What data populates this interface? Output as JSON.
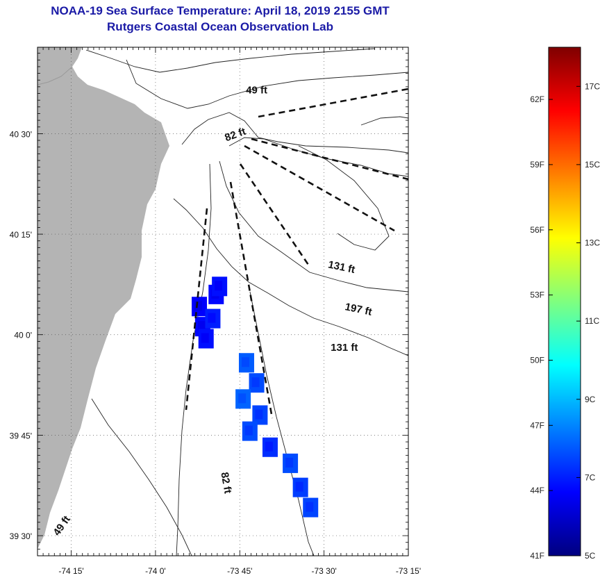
{
  "title": {
    "line1": "NOAA-19 Sea Surface Temperature:  April 18, 2019 2155 GMT",
    "line2": "Rutgers Coastal Ocean Observation Lab"
  },
  "map": {
    "lon_range": [
      -74.35,
      -73.25
    ],
    "lat_range": [
      39.45,
      40.715
    ],
    "x_ticks": [
      {
        "lon": -74.25,
        "label": "-74 15'"
      },
      {
        "lon": -74.0,
        "label": "-74 0'"
      },
      {
        "lon": -73.75,
        "label": "-73 45'"
      },
      {
        "lon": -73.5,
        "label": "-73 30'"
      },
      {
        "lon": -73.25,
        "label": "-73 15'"
      }
    ],
    "y_ticks": [
      {
        "lat": 40.5,
        "label": "40 30'"
      },
      {
        "lat": 40.25,
        "label": "40 15'"
      },
      {
        "lat": 40.0,
        "label": "40 0'"
      },
      {
        "lat": 39.75,
        "label": "39 45'"
      },
      {
        "lat": 39.5,
        "label": "39 30'"
      }
    ],
    "depth_labels": [
      {
        "text": "49 ft",
        "lon": -73.7,
        "lat": 40.6
      },
      {
        "text": "82 ft",
        "lon": -73.76,
        "lat": 40.49
      },
      {
        "text": "131 ft",
        "lon": -73.45,
        "lat": 40.16
      },
      {
        "text": "197 ft",
        "lon": -73.4,
        "lat": 40.055
      },
      {
        "text": "131 ft",
        "lon": -73.44,
        "lat": 39.96
      },
      {
        "text": "82 ft",
        "lon": -73.8,
        "lat": 39.63
      },
      {
        "text": "49 ft",
        "lon": -74.27,
        "lat": 39.52
      }
    ],
    "land_color": "#b4b4b4",
    "sst_cells": [
      {
        "lon": -73.87,
        "lat": 40.07,
        "temp_c": 6.6
      },
      {
        "lon": -73.86,
        "lat": 40.02,
        "temp_c": 6.7
      },
      {
        "lon": -73.85,
        "lat": 39.99,
        "temp_c": 6.8
      },
      {
        "lon": -73.82,
        "lat": 40.1,
        "temp_c": 6.7
      },
      {
        "lon": -73.83,
        "lat": 40.04,
        "temp_c": 7.0
      },
      {
        "lon": -73.81,
        "lat": 40.12,
        "temp_c": 6.8
      },
      {
        "lon": -73.73,
        "lat": 39.93,
        "temp_c": 7.8
      },
      {
        "lon": -73.7,
        "lat": 39.88,
        "temp_c": 7.6
      },
      {
        "lon": -73.74,
        "lat": 39.84,
        "temp_c": 7.9
      },
      {
        "lon": -73.69,
        "lat": 39.8,
        "temp_c": 7.5
      },
      {
        "lon": -73.72,
        "lat": 39.76,
        "temp_c": 7.6
      },
      {
        "lon": -73.66,
        "lat": 39.72,
        "temp_c": 7.2
      },
      {
        "lon": -73.6,
        "lat": 39.68,
        "temp_c": 7.6
      },
      {
        "lon": -73.57,
        "lat": 39.62,
        "temp_c": 7.4
      },
      {
        "lon": -73.54,
        "lat": 39.57,
        "temp_c": 7.5
      }
    ]
  },
  "colorbar": {
    "min_c": 5,
    "max_c": 18,
    "c_ticks": [
      {
        "value": 5,
        "label": "5C"
      },
      {
        "value": 7,
        "label": "7C"
      },
      {
        "value": 9,
        "label": "9C"
      },
      {
        "value": 11,
        "label": "11C"
      },
      {
        "value": 13,
        "label": "13C"
      },
      {
        "value": 15,
        "label": "15C"
      },
      {
        "value": 17,
        "label": "17C"
      }
    ],
    "f_ticks": [
      {
        "value": 41,
        "label": "41F"
      },
      {
        "value": 44,
        "label": "44F"
      },
      {
        "value": 47,
        "label": "47F"
      },
      {
        "value": 50,
        "label": "50F"
      },
      {
        "value": 53,
        "label": "53F"
      },
      {
        "value": 56,
        "label": "56F"
      },
      {
        "value": 59,
        "label": "59F"
      },
      {
        "value": 62,
        "label": "62F"
      }
    ],
    "stops": [
      "#00007f",
      "#0000ff",
      "#007fff",
      "#00ffff",
      "#7fff7f",
      "#ffff00",
      "#ff7f00",
      "#ff0000",
      "#7f0000"
    ]
  }
}
